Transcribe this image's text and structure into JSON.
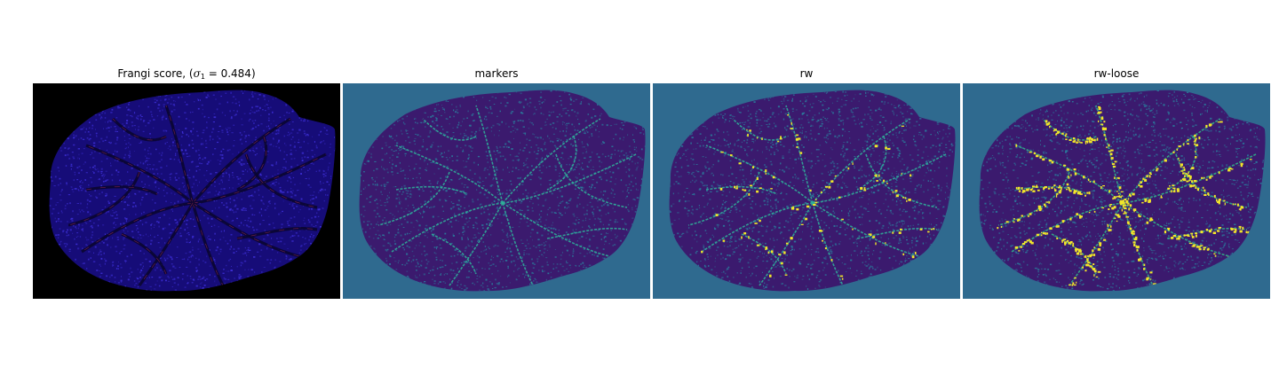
{
  "figure": {
    "panels": [
      {
        "id": "frangi",
        "title_prefix": "Frangi score, (",
        "title_symbol": "σ",
        "title_subscript": "1",
        "title_suffix": " = 0.484)",
        "background": "#000000",
        "tissue_fill": "#160c78",
        "noise_color": "#3d2fd6",
        "vessel_color": "#0a0630",
        "highlight_color": "#c0305a",
        "colormap": "plasma"
      },
      {
        "id": "markers",
        "title": "markers",
        "background": "#2f6a8f",
        "tissue_fill": "#3b1a6e",
        "noise_color": "#2a7c9c",
        "vessel_color": "#2fb59b",
        "highlight_color": "#2fb59b",
        "colormap": "viridis"
      },
      {
        "id": "rw",
        "title": "rw",
        "background": "#2f6a8f",
        "tissue_fill": "#3b1a6e",
        "noise_color": "#2a7c9c",
        "vessel_color": "#2fb59b",
        "highlight_color": "#f0e62a",
        "colormap": "viridis"
      },
      {
        "id": "rw-loose",
        "title": "rw-loose",
        "background": "#2f6a8f",
        "tissue_fill": "#3b1a6e",
        "noise_color": "#2a7c9c",
        "vessel_color": "#30b88a",
        "highlight_color": "#f2e52a",
        "colormap": "viridis"
      }
    ]
  }
}
